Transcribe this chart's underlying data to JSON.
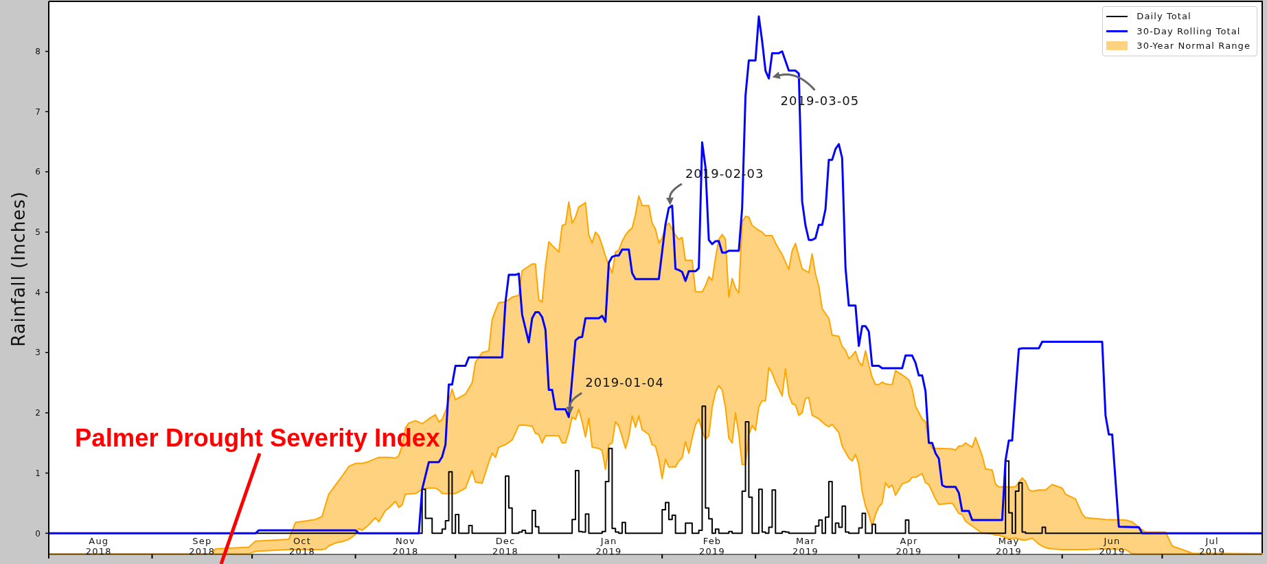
{
  "chart_data": {
    "type": "line",
    "ylabel": "Rainfall (Inches)",
    "xlim": [
      "2018-08-01",
      "2019-07-31"
    ],
    "xticks": [
      {
        "value": "2018-08-01",
        "label": null
      },
      {
        "value": "2018-08-16",
        "label": "Aug 2018"
      },
      {
        "value": "2018-09-01",
        "label": null
      },
      {
        "value": "2018-09-16",
        "label": "Sep 2018"
      },
      {
        "value": "2018-10-01",
        "label": null
      },
      {
        "value": "2018-10-16",
        "label": "Oct 2018"
      },
      {
        "value": "2018-11-01",
        "label": null
      },
      {
        "value": "2018-11-16",
        "label": "Nov 2018"
      },
      {
        "value": "2018-12-01",
        "label": null
      },
      {
        "value": "2018-12-16",
        "label": "Dec 2018"
      },
      {
        "value": "2019-01-01",
        "label": null
      },
      {
        "value": "2019-01-16",
        "label": "Jan 2019"
      },
      {
        "value": "2019-02-01",
        "label": null
      },
      {
        "value": "2019-02-16",
        "label": "Feb 2019"
      },
      {
        "value": "2019-03-01",
        "label": null
      },
      {
        "value": "2019-03-16",
        "label": "Mar 2019"
      },
      {
        "value": "2019-04-01",
        "label": null
      },
      {
        "value": "2019-04-16",
        "label": "Apr 2019"
      },
      {
        "value": "2019-05-01",
        "label": null
      },
      {
        "value": "2019-05-16",
        "label": "May 2019"
      },
      {
        "value": "2019-06-01",
        "label": null
      },
      {
        "value": "2019-06-16",
        "label": "Jun 2019"
      },
      {
        "value": "2019-07-01",
        "label": null
      },
      {
        "value": "2019-07-16",
        "label": "Jul 2019"
      }
    ],
    "ylim": [
      -0.35,
      8.83
    ],
    "yticks": [
      0,
      1,
      2,
      3,
      4,
      5,
      6,
      7,
      8
    ],
    "legend": "top right",
    "annotations": [
      {
        "text": "2019-01-04",
        "x": "2019-01-04",
        "y": 1.93
      },
      {
        "text": "2019-02-03",
        "x": "2019-02-03",
        "y": 5.4
      },
      {
        "text": "2019-03-05",
        "x": "2019-03-05",
        "y": 7.55
      },
      "Palmer Drought Severity Index"
    ],
    "series": [
      {
        "name": "Daily Total",
        "type": "step",
        "color": "#000000",
        "x": [
          "2018-08-01",
          "2018-11-21",
          "2018-11-22",
          "2018-11-24",
          "2018-11-27",
          "2018-11-28",
          "2018-11-29",
          "2018-11-30",
          "2018-12-01",
          "2018-12-02",
          "2018-12-05",
          "2018-12-06",
          "2018-12-16",
          "2018-12-17",
          "2018-12-18",
          "2018-12-20",
          "2018-12-21",
          "2018-12-22",
          "2018-12-24",
          "2018-12-25",
          "2018-12-26",
          "2019-01-05",
          "2019-01-06",
          "2019-01-07",
          "2019-01-08",
          "2019-01-09",
          "2019-01-10",
          "2019-01-14",
          "2019-01-15",
          "2019-01-16",
          "2019-01-17",
          "2019-01-18",
          "2019-01-19",
          "2019-01-20",
          "2019-01-21",
          "2019-02-01",
          "2019-02-02",
          "2019-02-03",
          "2019-02-04",
          "2019-02-05",
          "2019-02-08",
          "2019-02-10",
          "2019-02-12",
          "2019-02-13",
          "2019-02-14",
          "2019-02-15",
          "2019-02-16",
          "2019-02-17",
          "2019-02-18",
          "2019-02-21",
          "2019-02-22",
          "2019-02-25",
          "2019-02-26",
          "2019-02-27",
          "2019-02-28",
          "2019-03-02",
          "2019-03-03",
          "2019-03-04",
          "2019-03-05",
          "2019-03-06",
          "2019-03-07",
          "2019-03-09",
          "2019-03-10",
          "2019-03-11",
          "2019-03-19",
          "2019-03-20",
          "2019-03-21",
          "2019-03-22",
          "2019-03-23",
          "2019-03-24",
          "2019-03-25",
          "2019-03-26",
          "2019-03-27",
          "2019-03-28",
          "2019-03-29",
          "2019-04-01",
          "2019-04-02",
          "2019-04-03",
          "2019-04-05",
          "2019-04-06",
          "2019-04-15",
          "2019-04-16",
          "2019-05-15",
          "2019-05-16",
          "2019-05-17",
          "2019-05-18",
          "2019-05-19",
          "2019-05-20",
          "2019-05-21",
          "2019-05-26",
          "2019-05-27",
          "2019-07-31"
        ],
        "values": [
          0,
          0.73,
          0.25,
          0,
          0.07,
          0.21,
          1.02,
          0,
          0.31,
          0,
          0.13,
          0,
          0.95,
          0.42,
          0,
          0.02,
          0.05,
          0,
          0.38,
          0.11,
          0,
          0.23,
          1.04,
          0.03,
          0.02,
          0.32,
          0,
          0.03,
          0.86,
          1.41,
          0.08,
          0.02,
          0,
          0.18,
          0,
          0.39,
          0.51,
          0.23,
          0.3,
          0,
          0.17,
          0,
          0.05,
          2.11,
          0.42,
          0.24,
          0,
          0.07,
          0,
          0.03,
          0,
          0.7,
          1.85,
          0.6,
          0,
          0.73,
          0.02,
          0,
          0.1,
          0.72,
          0,
          0.03,
          0.02,
          0,
          0.12,
          0.22,
          0,
          0.27,
          0.86,
          0,
          0.17,
          0.1,
          0.45,
          0.02,
          0,
          0.09,
          0.33,
          0,
          0.15,
          0,
          0.22,
          0,
          1.2,
          0.34,
          0,
          0.7,
          0.84,
          0.02,
          0,
          0.1,
          0,
          0
        ]
      },
      {
        "name": "30-Day Rolling Total",
        "type": "line",
        "color": "#0000ff",
        "x": [
          "2018-08-01",
          "2018-10-02",
          "2018-10-03",
          "2018-11-01",
          "2018-11-02",
          "2018-11-20",
          "2018-11-21",
          "2018-11-23",
          "2018-11-26",
          "2018-11-27",
          "2018-11-28",
          "2018-11-29",
          "2018-11-30",
          "2018-12-01",
          "2018-12-04",
          "2018-12-05",
          "2018-12-15",
          "2018-12-16",
          "2018-12-17",
          "2018-12-19",
          "2018-12-20",
          "2018-12-21",
          "2018-12-23",
          "2018-12-24",
          "2018-12-25",
          "2018-12-26",
          "2018-12-27",
          "2018-12-28",
          "2018-12-29",
          "2018-12-30",
          "2018-12-31",
          "2019-01-03",
          "2019-01-04",
          "2019-01-06",
          "2019-01-07",
          "2019-01-08",
          "2019-01-09",
          "2019-01-13",
          "2019-01-14",
          "2019-01-15",
          "2019-01-16",
          "2019-01-17",
          "2019-01-18",
          "2019-01-19",
          "2019-01-20",
          "2019-01-22",
          "2019-01-23",
          "2019-01-24",
          "2019-01-31",
          "2019-02-02",
          "2019-02-03",
          "2019-02-04",
          "2019-02-05",
          "2019-02-06",
          "2019-02-07",
          "2019-02-08",
          "2019-02-09",
          "2019-02-11",
          "2019-02-12",
          "2019-02-13",
          "2019-02-14",
          "2019-02-15",
          "2019-02-16",
          "2019-02-17",
          "2019-02-18",
          "2019-02-19",
          "2019-02-20",
          "2019-02-21",
          "2019-02-24",
          "2019-02-25",
          "2019-02-26",
          "2019-02-27",
          "2019-03-01",
          "2019-03-02",
          "2019-03-03",
          "2019-03-04",
          "2019-03-05",
          "2019-03-06",
          "2019-03-08",
          "2019-03-09",
          "2019-03-11",
          "2019-03-13",
          "2019-03-14",
          "2019-03-15",
          "2019-03-16",
          "2019-03-17",
          "2019-03-18",
          "2019-03-19",
          "2019-03-20",
          "2019-03-21",
          "2019-03-22",
          "2019-03-23",
          "2019-03-24",
          "2019-03-25",
          "2019-03-26",
          "2019-03-27",
          "2019-03-28",
          "2019-03-29",
          "2019-03-31",
          "2019-04-01",
          "2019-04-02",
          "2019-04-03",
          "2019-04-04",
          "2019-04-05",
          "2019-04-07",
          "2019-04-08",
          "2019-04-14",
          "2019-04-15",
          "2019-04-17",
          "2019-04-18",
          "2019-04-19",
          "2019-04-20",
          "2019-04-21",
          "2019-04-22",
          "2019-04-23",
          "2019-04-24",
          "2019-04-25",
          "2019-04-26",
          "2019-04-27",
          "2019-04-30",
          "2019-05-01",
          "2019-05-02",
          "2019-05-04",
          "2019-05-05",
          "2019-05-14",
          "2019-05-15",
          "2019-05-16",
          "2019-05-17",
          "2019-05-18",
          "2019-05-19",
          "2019-05-20",
          "2019-05-25",
          "2019-05-26",
          "2019-06-13",
          "2019-06-14",
          "2019-06-15",
          "2019-06-16",
          "2019-06-18",
          "2019-06-24",
          "2019-06-25",
          "2019-07-31"
        ],
        "values": [
          0,
          0,
          0.05,
          0.05,
          0,
          0,
          0.73,
          1.18,
          1.18,
          1.27,
          1.47,
          2.47,
          2.47,
          2.78,
          2.78,
          2.92,
          2.92,
          3.84,
          4.29,
          4.29,
          4.31,
          3.63,
          3.17,
          3.57,
          3.67,
          3.67,
          3.59,
          3.38,
          2.38,
          2.38,
          2.06,
          2.06,
          1.93,
          3.2,
          3.25,
          3.26,
          3.57,
          3.57,
          3.61,
          3.51,
          4.49,
          4.59,
          4.61,
          4.61,
          4.71,
          4.71,
          4.32,
          4.22,
          4.22,
          5.13,
          5.4,
          5.44,
          4.39,
          4.37,
          4.34,
          4.19,
          4.35,
          4.35,
          4.4,
          6.49,
          6.08,
          4.87,
          4.8,
          4.85,
          4.85,
          4.66,
          4.66,
          4.69,
          4.69,
          5.4,
          7.26,
          7.85,
          7.85,
          8.58,
          8.17,
          7.68,
          7.55,
          7.97,
          7.97,
          8.0,
          7.68,
          7.68,
          7.63,
          5.51,
          5.11,
          4.87,
          4.87,
          4.9,
          5.12,
          5.12,
          5.38,
          6.2,
          6.2,
          6.38,
          6.46,
          6.23,
          4.41,
          3.78,
          3.78,
          3.11,
          3.44,
          3.44,
          3.35,
          2.78,
          2.78,
          2.74,
          2.74,
          2.95,
          2.95,
          2.83,
          2.62,
          2.62,
          2.36,
          1.5,
          1.5,
          1.33,
          1.24,
          0.8,
          0.77,
          0.77,
          0.67,
          0.37,
          0.37,
          0.22,
          0.22,
          1.21,
          1.54,
          1.54,
          2.32,
          3.06,
          3.07,
          3.07,
          3.18,
          3.18,
          1.96,
          1.64,
          1.64,
          0.11,
          0.1,
          0,
          0
        ]
      },
      {
        "name": "30-Year Normal Range",
        "type": "line",
        "color": "#ffa500",
        "x": [
          "2018-08-01",
          "2018-09-19",
          "2018-09-20",
          "2018-09-30",
          "2018-10-02",
          "2018-10-12",
          "2018-10-14",
          "2018-10-20",
          "2018-10-22",
          "2018-10-23",
          "2018-10-24",
          "2018-10-26",
          "2018-10-28",
          "2018-10-30",
          "2018-11-01",
          "2018-11-02",
          "2018-11-03",
          "2018-11-05",
          "2018-11-07",
          "2018-11-08",
          "2018-11-10",
          "2018-11-11",
          "2018-11-13",
          "2018-11-14",
          "2018-11-15",
          "2018-11-16",
          "2018-11-17",
          "2018-11-19",
          "2018-11-21",
          "2018-11-23",
          "2018-11-25",
          "2018-11-26",
          "2018-11-27",
          "2018-11-28",
          "2018-11-30",
          "2018-12-01",
          "2018-12-04",
          "2018-12-06",
          "2018-12-07",
          "2018-12-09",
          "2018-12-11",
          "2018-12-12",
          "2018-12-13",
          "2018-12-14",
          "2018-12-16",
          "2018-12-18",
          "2018-12-20",
          "2018-12-21",
          "2018-12-24",
          "2018-12-25",
          "2018-12-26",
          "2018-12-27",
          "2018-12-28",
          "2018-12-29",
          "2018-12-30",
          "2019-01-01",
          "2019-01-02",
          "2019-01-03",
          "2019-01-04",
          "2019-01-05",
          "2019-01-06",
          "2019-01-07",
          "2019-01-08",
          "2019-01-09",
          "2019-01-10",
          "2019-01-11",
          "2019-01-12",
          "2019-01-13",
          "2019-01-14",
          "2019-01-15",
          "2019-01-16",
          "2019-01-17",
          "2019-01-18",
          "2019-01-19",
          "2019-01-20",
          "2019-01-21",
          "2019-01-22",
          "2019-01-23",
          "2019-01-24",
          "2019-01-25",
          "2019-01-26",
          "2019-01-28",
          "2019-01-29",
          "2019-01-30",
          "2019-01-31",
          "2019-02-01",
          "2019-02-02",
          "2019-02-03",
          "2019-02-05",
          "2019-02-06",
          "2019-02-07",
          "2019-02-08",
          "2019-02-09",
          "2019-02-10",
          "2019-02-11",
          "2019-02-12",
          "2019-02-13",
          "2019-02-14",
          "2019-02-15",
          "2019-02-16",
          "2019-02-17",
          "2019-02-18",
          "2019-02-19",
          "2019-02-20",
          "2019-02-21",
          "2019-02-22",
          "2019-02-23",
          "2019-02-24",
          "2019-02-25",
          "2019-02-26",
          "2019-02-27",
          "2019-02-28",
          "2019-03-01",
          "2019-03-02",
          "2019-03-03",
          "2019-03-04",
          "2019-03-05",
          "2019-03-06",
          "2019-03-07",
          "2019-03-08",
          "2019-03-09",
          "2019-03-10",
          "2019-03-11",
          "2019-03-12",
          "2019-03-13",
          "2019-03-14",
          "2019-03-15",
          "2019-03-16",
          "2019-03-17",
          "2019-03-18",
          "2019-03-19",
          "2019-03-20",
          "2019-03-21",
          "2019-03-22",
          "2019-03-23",
          "2019-03-24",
          "2019-03-26",
          "2019-03-27",
          "2019-03-28",
          "2019-03-29",
          "2019-03-30",
          "2019-03-31",
          "2019-04-01",
          "2019-04-02",
          "2019-04-03",
          "2019-04-04",
          "2019-04-05",
          "2019-04-06",
          "2019-04-07",
          "2019-04-08",
          "2019-04-09",
          "2019-04-10",
          "2019-04-11",
          "2019-04-12",
          "2019-04-14",
          "2019-04-16",
          "2019-04-17",
          "2019-04-18",
          "2019-04-20",
          "2019-04-21",
          "2019-04-22",
          "2019-04-23",
          "2019-04-24",
          "2019-04-25",
          "2019-04-29",
          "2019-04-30",
          "2019-05-01",
          "2019-05-02",
          "2019-05-03",
          "2019-05-05",
          "2019-05-06",
          "2019-05-08",
          "2019-05-09",
          "2019-05-11",
          "2019-05-12",
          "2019-05-13",
          "2019-05-16",
          "2019-05-18",
          "2019-05-20",
          "2019-05-21",
          "2019-05-22",
          "2019-05-23",
          "2019-05-25",
          "2019-05-27",
          "2019-05-29",
          "2019-06-01",
          "2019-06-02",
          "2019-06-05",
          "2019-06-07",
          "2019-06-08",
          "2019-06-14",
          "2019-06-20",
          "2019-06-22",
          "2019-06-24",
          "2019-06-26",
          "2019-07-02",
          "2019-07-04",
          "2019-07-07",
          "2019-07-10",
          "2019-07-31"
        ],
        "values": [
          null,
          null,
          null,
          null,
          null,
          null,
          null,
          null,
          null,
          null,
          null,
          null,
          null,
          null,
          null,
          null,
          null,
          null,
          null,
          null,
          null,
          null,
          null,
          null,
          null,
          null,
          null,
          null,
          null,
          null,
          null,
          null,
          null,
          null,
          null,
          null,
          null,
          null,
          null,
          null,
          null,
          null,
          null,
          null,
          null,
          null,
          null,
          null,
          null,
          null,
          null,
          null,
          null,
          null,
          null,
          null,
          null,
          null,
          null,
          null,
          null,
          null,
          null,
          null,
          null,
          null,
          null,
          null,
          null,
          null,
          null,
          null,
          null,
          null,
          null,
          null,
          null,
          null,
          null,
          null,
          null,
          null,
          null,
          null,
          null,
          null,
          null,
          null,
          null,
          null,
          null,
          null,
          null,
          null,
          null,
          null,
          null,
          null,
          null,
          null,
          null,
          null,
          null,
          null,
          null,
          null,
          null,
          null,
          null,
          null,
          null,
          null,
          null,
          null,
          null,
          null,
          null,
          null,
          null,
          null,
          null,
          null,
          null,
          null,
          null,
          null,
          null,
          null,
          null,
          null,
          null,
          null,
          null,
          null,
          null,
          null,
          null,
          null,
          null,
          null,
          null,
          null,
          null,
          null,
          null,
          null,
          null,
          null,
          null,
          null,
          null,
          null,
          null,
          null,
          null,
          null,
          null,
          null,
          null,
          null,
          null,
          null,
          null,
          null,
          null,
          null,
          null,
          null,
          null,
          null,
          null,
          null,
          null,
          null,
          null,
          null,
          null,
          null,
          null,
          null,
          null,
          null,
          null,
          null,
          null,
          null,
          null,
          null,
          null,
          null,
          null,
          null,
          null,
          null,
          null,
          null,
          null,
          null,
          null,
          null
        ],
        "lower": [
          -0.34,
          -0.34,
          -0.34,
          -0.34,
          -0.3,
          -0.27,
          -0.27,
          -0.27,
          -0.27,
          -0.26,
          -0.21,
          -0.16,
          -0.14,
          -0.1,
          -0.02,
          0.08,
          0.05,
          0.14,
          0.26,
          0.19,
          0.38,
          0.42,
          0.53,
          0.43,
          0.47,
          0.65,
          0.65,
          0.66,
          0.73,
          0.75,
          0.75,
          0.72,
          0.66,
          0.66,
          0.66,
          0.66,
          0.75,
          1.04,
          0.85,
          0.83,
          1.18,
          1.33,
          1.26,
          1.43,
          1.47,
          1.55,
          1.79,
          1.8,
          1.78,
          1.66,
          1.64,
          1.5,
          1.62,
          1.62,
          1.62,
          1.62,
          1.5,
          1.5,
          1.68,
          1.93,
          1.89,
          2.06,
          1.85,
          1.6,
          1.91,
          1.43,
          1.42,
          1.41,
          1.37,
          1.06,
          1.47,
          1.5,
          1.85,
          1.78,
          1.6,
          1.41,
          1.6,
          1.95,
          1.76,
          1.95,
          1.72,
          1.64,
          1.47,
          1.45,
          1.23,
          0.91,
          1.23,
          1.1,
          1.1,
          1.2,
          1.25,
          1.52,
          1.33,
          1.58,
          1.8,
          1.9,
          1.7,
          1.56,
          1.62,
          2.09,
          2.34,
          2.45,
          2.38,
          2.09,
          1.58,
          1.5,
          2.0,
          1.64,
          1.14,
          1.14,
          1.64,
          1.79,
          1.71,
          2.1,
          2.2,
          2.2,
          2.75,
          2.66,
          2.51,
          2.4,
          2.28,
          2.73,
          2.3,
          2.15,
          2.13,
          1.96,
          2.0,
          2.24,
          2.25,
          1.96,
          1.93,
          1.9,
          1.85,
          1.8,
          1.77,
          1.81,
          1.67,
          1.45,
          1.35,
          1.25,
          1.2,
          1.31,
          1.14,
          0.69,
          0.45,
          0.31,
          0.12,
          0.31,
          0.44,
          0.5,
          0.84,
          0.76,
          0.8,
          0.63,
          0.82,
          0.86,
          0.93,
          0.93,
          0.99,
          0.84,
          0.81,
          0.69,
          0.57,
          0.48,
          0.5,
          0.42,
          0.33,
          0.31,
          0.2,
          0.12,
          0.08,
          0.0,
          0.0,
          -0.01,
          -0.03,
          -0.03,
          -0.09,
          -0.08,
          -0.11,
          -0.11,
          -0.1,
          -0.08,
          -0.18,
          -0.24,
          -0.26,
          -0.27,
          -0.27,
          -0.27,
          -0.27,
          -0.27,
          -0.26,
          -0.27,
          -0.34,
          -0.34,
          -0.34,
          -0.34,
          -0.34,
          -0.34,
          -0.34,
          -0.34
        ],
        "upper": [
          -0.34,
          -0.34,
          -0.26,
          -0.23,
          -0.13,
          -0.1,
          0.18,
          0.23,
          0.28,
          0.47,
          0.65,
          0.8,
          0.95,
          1.11,
          1.16,
          1.16,
          1.16,
          1.19,
          1.24,
          1.26,
          1.26,
          1.26,
          1.25,
          1.29,
          1.45,
          1.75,
          1.83,
          1.87,
          1.82,
          1.9,
          1.97,
          1.85,
          1.89,
          2.03,
          2.39,
          2.22,
          2.31,
          2.5,
          2.84,
          3.0,
          3.03,
          3.55,
          3.7,
          3.83,
          3.84,
          3.92,
          3.95,
          4.36,
          4.47,
          4.47,
          3.88,
          3.84,
          4.44,
          4.84,
          4.78,
          4.67,
          5.11,
          5.13,
          5.5,
          5.15,
          5.25,
          5.42,
          5.45,
          5.49,
          4.95,
          4.82,
          5.0,
          4.94,
          4.78,
          4.6,
          4.45,
          4.32,
          4.67,
          4.7,
          4.85,
          4.95,
          5.02,
          5.07,
          5.29,
          5.6,
          5.44,
          5.44,
          5.15,
          5.05,
          4.82,
          4.9,
          5.1,
          5.15,
          4.95,
          4.88,
          4.91,
          4.53,
          4.53,
          4.53,
          4.01,
          4.01,
          4.01,
          4.11,
          4.26,
          4.2,
          4.57,
          4.88,
          4.96,
          4.88,
          3.92,
          4.23,
          4.07,
          3.99,
          5.17,
          5.26,
          5.25,
          5.11,
          5.07,
          5.03,
          5.0,
          4.94,
          4.94,
          4.94,
          4.82,
          4.72,
          4.63,
          4.5,
          4.38,
          4.69,
          4.81,
          4.6,
          4.39,
          4.36,
          4.33,
          4.64,
          4.3,
          4.1,
          3.73,
          3.65,
          3.57,
          3.29,
          3.27,
          3.1,
          3.04,
          2.9,
          2.95,
          3.02,
          2.85,
          2.78,
          3.03,
          2.8,
          2.59,
          2.47,
          2.47,
          2.51,
          2.48,
          2.47,
          2.47,
          2.7,
          2.63,
          2.55,
          2.4,
          2.11,
          1.9,
          1.85,
          1.52,
          1.41,
          1.41,
          1.41,
          1.4,
          1.38,
          1.45,
          1.45,
          1.5,
          1.43,
          1.59,
          1.29,
          1.07,
          1.05,
          0.82,
          0.77,
          0.77,
          0.77,
          0.92,
          0.86,
          0.72,
          0.7,
          0.72,
          0.72,
          0.81,
          0.75,
          0.65,
          0.57,
          0.32,
          0.26,
          0.23,
          0.22,
          0.19,
          0.1,
          0.02,
          0.02,
          -0.21,
          -0.27,
          -0.33,
          -0.34
        ]
      }
    ]
  }
}
